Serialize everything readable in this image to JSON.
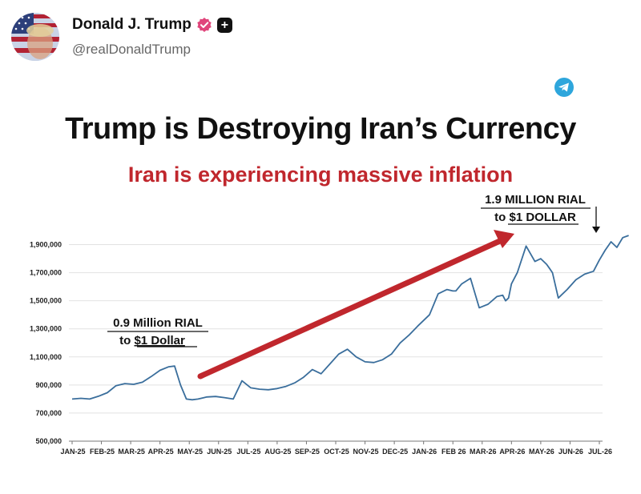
{
  "post": {
    "display_name": "Donald J. Trump",
    "handle": "@realDonaldTrump",
    "badge_plus": "+"
  },
  "colors": {
    "line": "#3a6e9c",
    "arrow": "#c0272d",
    "title": "#111111",
    "subtitle": "#c0272d"
  },
  "icons": [
    "avatar-image",
    "verified-badge-icon",
    "plus-badge-icon",
    "telegram-icon"
  ],
  "chart_data": {
    "type": "line",
    "title": "Trump is Destroying Iran’s Currency",
    "subtitle": "Iran is experiencing massive inflation",
    "xlabel": "",
    "ylabel": "",
    "ylim": [
      500000,
      2000000
    ],
    "yticks": [
      500000,
      700000,
      900000,
      1100000,
      1300000,
      1500000,
      1700000,
      1900000
    ],
    "ytick_labels": [
      "500,000",
      "700,000",
      "900,000",
      "1,100,000",
      "1,300,000",
      "1,500,000",
      "1,700,000",
      "1,900,000"
    ],
    "grid": true,
    "xtick_labels": [
      "JAN-25",
      "FEB-25",
      "MAR-25",
      "APR-25",
      "MAY-25",
      "JUN-25",
      "JUL-25",
      "AUG-25",
      "SEP-25",
      "OCT-25",
      "NOV-25",
      "DEC-25",
      "JAN-26",
      "FEB 26",
      "MAR-26",
      "APR-26",
      "MAY-26",
      "JUN-26",
      "JUL-26"
    ],
    "x_months": [
      0,
      0.3,
      0.6,
      0.9,
      1.2,
      1.5,
      1.8,
      2.1,
      2.4,
      2.7,
      3.0,
      3.3,
      3.5,
      3.7,
      3.9,
      4.1,
      4.3,
      4.6,
      4.9,
      5.2,
      5.5,
      5.8,
      6.1,
      6.4,
      6.7,
      7.0,
      7.3,
      7.6,
      7.9,
      8.2,
      8.5,
      8.8,
      9.1,
      9.4,
      9.7,
      10.0,
      10.3,
      10.6,
      10.9,
      11.2,
      11.5,
      11.8,
      12.0,
      12.2,
      12.5,
      12.8,
      13.0,
      13.1,
      13.3,
      13.6,
      13.9,
      14.2,
      14.5,
      14.7,
      14.8,
      14.9,
      15.0,
      15.2,
      15.5,
      15.8,
      16.0,
      16.2,
      16.3,
      16.4,
      16.6,
      16.9,
      17.2,
      17.5,
      17.8,
      18.0,
      18.2,
      18.4,
      18.6,
      18.8,
      19.0
    ],
    "values": [
      800000,
      805000,
      800000,
      820000,
      845000,
      895000,
      910000,
      905000,
      920000,
      960000,
      1005000,
      1030000,
      1035000,
      900000,
      800000,
      795000,
      800000,
      815000,
      818000,
      810000,
      800000,
      930000,
      880000,
      870000,
      866000,
      875000,
      890000,
      915000,
      955000,
      1010000,
      980000,
      1050000,
      1120000,
      1155000,
      1100000,
      1065000,
      1060000,
      1080000,
      1120000,
      1200000,
      1255000,
      1320000,
      1360000,
      1400000,
      1550000,
      1580000,
      1570000,
      1570000,
      1620000,
      1660000,
      1450000,
      1475000,
      1530000,
      1540000,
      1500000,
      1520000,
      1620000,
      1700000,
      1890000,
      1780000,
      1800000,
      1760000,
      1730000,
      1700000,
      1520000,
      1580000,
      1650000,
      1690000,
      1710000,
      1790000,
      1860000,
      1920000,
      1880000,
      1950000,
      1965000
    ],
    "annotations": [
      {
        "line1": "0.9 Million RIAL",
        "line2": "to ",
        "line2_underlined": "$1 Dollar"
      },
      {
        "line1": "1.9 MILLION RIAL",
        "line2": "to ",
        "line2_underlined": "$1 DOLLAR"
      }
    ]
  }
}
